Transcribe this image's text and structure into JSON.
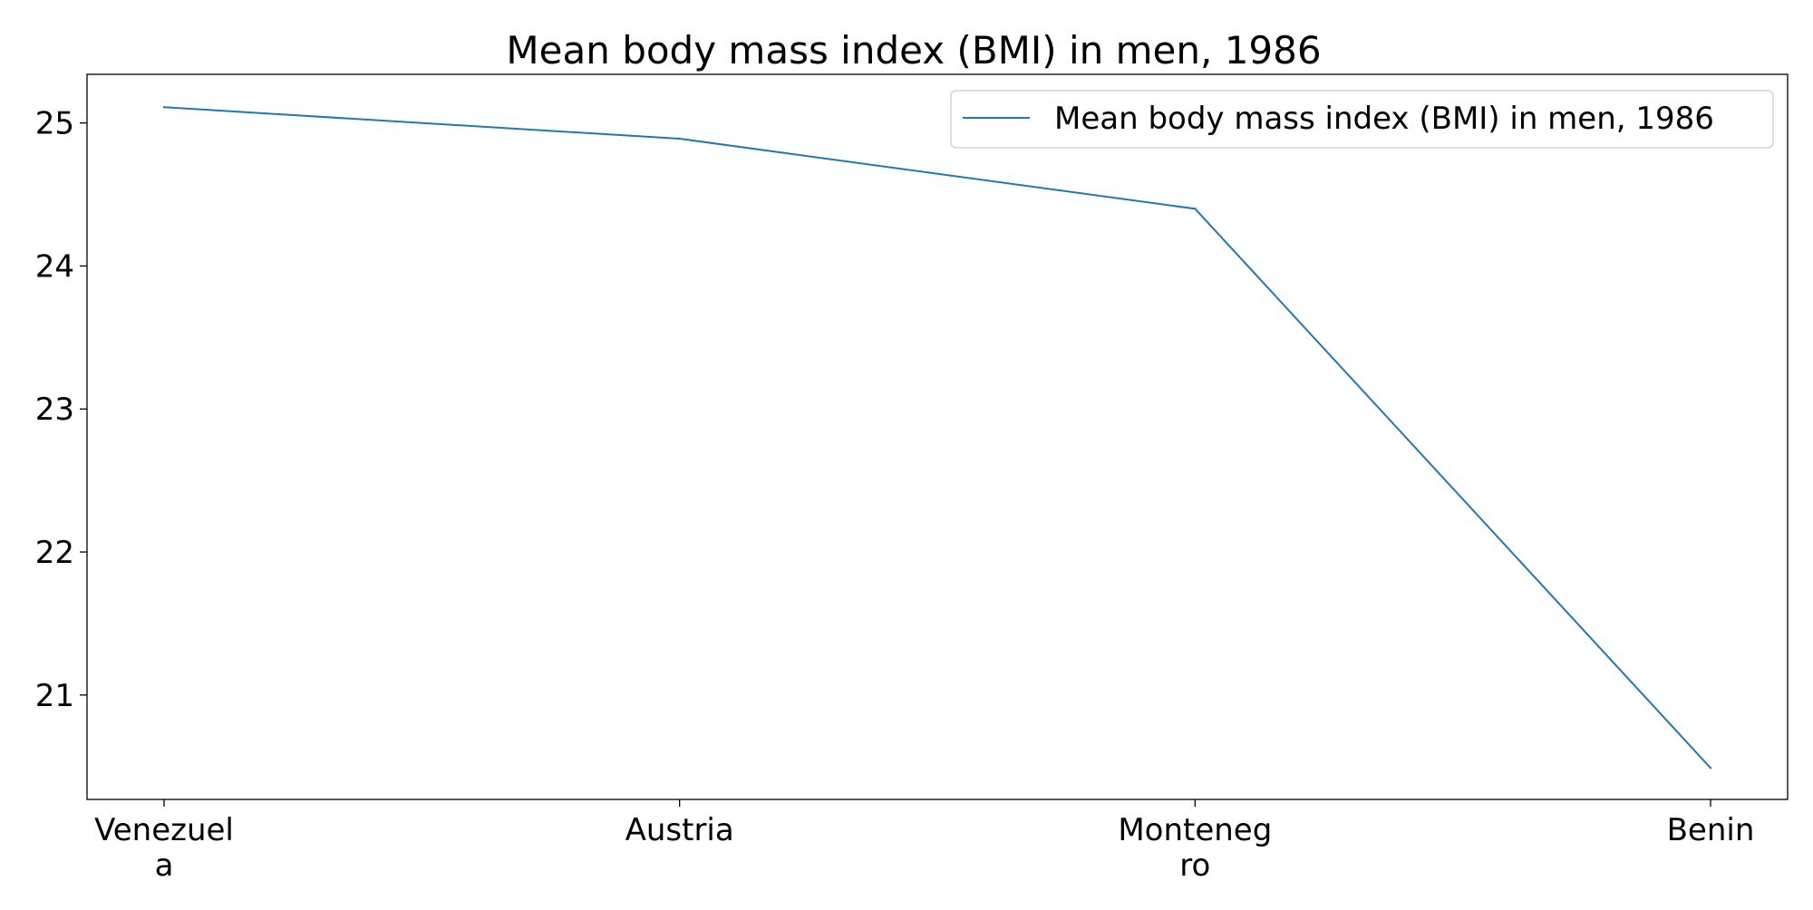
{
  "chart_data": {
    "type": "line",
    "title": "Mean body mass index (BMI) in men, 1986",
    "xlabel": "",
    "ylabel": "",
    "categories": [
      "Venezuela",
      "Austria",
      "Montenegro",
      "Benin"
    ],
    "category_tick_lines": [
      [
        "Venezuel",
        "a"
      ],
      [
        "Austria"
      ],
      [
        "Monteneg",
        "ro"
      ],
      [
        "Benin"
      ]
    ],
    "series": [
      {
        "name": "Mean body mass index (BMI) in men, 1986",
        "values": [
          25.11,
          24.89,
          24.4,
          20.49
        ],
        "color": "#1f77b4"
      }
    ],
    "ylim": [
      20.27,
      25.34
    ],
    "yticks": [
      21,
      22,
      23,
      24,
      25
    ],
    "grid": false,
    "legend_position": "top-right"
  }
}
